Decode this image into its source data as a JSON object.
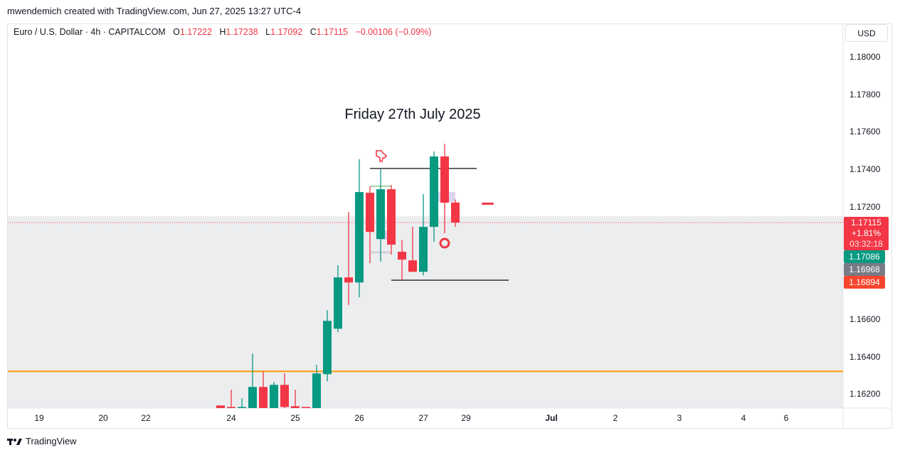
{
  "credit": "mwendemich created with TradingView.com, Jun 27, 2025 13:27 UTC-4",
  "legend": {
    "symbol": "Euro / U.S. Dollar · 4h · CAPITALCOM",
    "o_label": "O",
    "o": "1.17222",
    "h_label": "H",
    "h": "1.17238",
    "l_label": "L",
    "l": "1.17092",
    "c_label": "C",
    "c": "1.17115",
    "change": "−0.00106 (−0.09%)"
  },
  "currency": "USD",
  "annotation": "Friday 27th July 2025",
  "price_axis": [
    "1.18000",
    "1.17800",
    "1.17600",
    "1.17400",
    "1.17200",
    "1.16600",
    "1.16400",
    "1.16200"
  ],
  "badges": {
    "last_price": "1.17115",
    "last_change": "+1.81%",
    "countdown": "03:32:18",
    "b1": "1.17086",
    "b2": "1.16968",
    "b3": "1.16894"
  },
  "time_axis": [
    "19",
    "20",
    "22",
    "24",
    "25",
    "26",
    "27",
    "29",
    "Jul",
    "2",
    "3",
    "4",
    "6"
  ],
  "colors": {
    "up": "#089981",
    "down": "#f23645",
    "orange": "#ff9800",
    "gray": "#787b86"
  },
  "levels": {
    "orange_line": 1.1632,
    "upper_black": 1.17404,
    "lower_black": 1.16807,
    "shade_top": 1.17149,
    "current": 1.17115
  },
  "candles": [
    [
      1.16138,
      1.16138,
      1.16119,
      1.16119
    ],
    [
      1.1613,
      1.16222,
      1.16119,
      1.16119
    ],
    [
      1.16119,
      1.16176,
      1.16119,
      1.1613
    ],
    [
      1.16119,
      1.16415,
      1.16119,
      1.16237
    ],
    [
      1.16237,
      1.1632,
      1.16119,
      1.16119
    ],
    [
      1.16119,
      1.16263,
      1.16119,
      1.16248
    ],
    [
      1.16248,
      1.16309,
      1.16119,
      1.1613
    ],
    [
      1.16134,
      1.16222,
      1.16119,
      1.16119
    ],
    [
      1.1613,
      1.1613,
      1.16119,
      1.16119
    ],
    [
      1.16119,
      1.16355,
      1.16119,
      1.16309
    ],
    [
      1.16305,
      1.16647,
      1.16267,
      1.1659
    ],
    [
      1.16548,
      1.16887,
      1.16529,
      1.16822
    ],
    [
      1.16822,
      1.17172,
      1.16674,
      1.16795
    ],
    [
      1.16795,
      1.17453,
      1.16716,
      1.17278
    ],
    [
      1.17274,
      1.17308,
      1.16898,
      1.17065
    ],
    [
      1.17027,
      1.174,
      1.16906,
      1.17293
    ],
    [
      1.17293,
      1.17316,
      1.16944,
      1.16997
    ],
    [
      1.16959,
      1.17023,
      1.16807,
      1.16917
    ],
    [
      1.16913,
      1.17092,
      1.16852,
      1.16852
    ],
    [
      1.16852,
      1.17267,
      1.16833,
      1.17092
    ],
    [
      1.17092,
      1.17495,
      1.17012,
      1.17468
    ],
    [
      1.17468,
      1.17536,
      1.17058,
      1.17221
    ],
    [
      1.17222,
      1.17238,
      1.17092,
      1.17115
    ]
  ],
  "footer": "TradingView"
}
